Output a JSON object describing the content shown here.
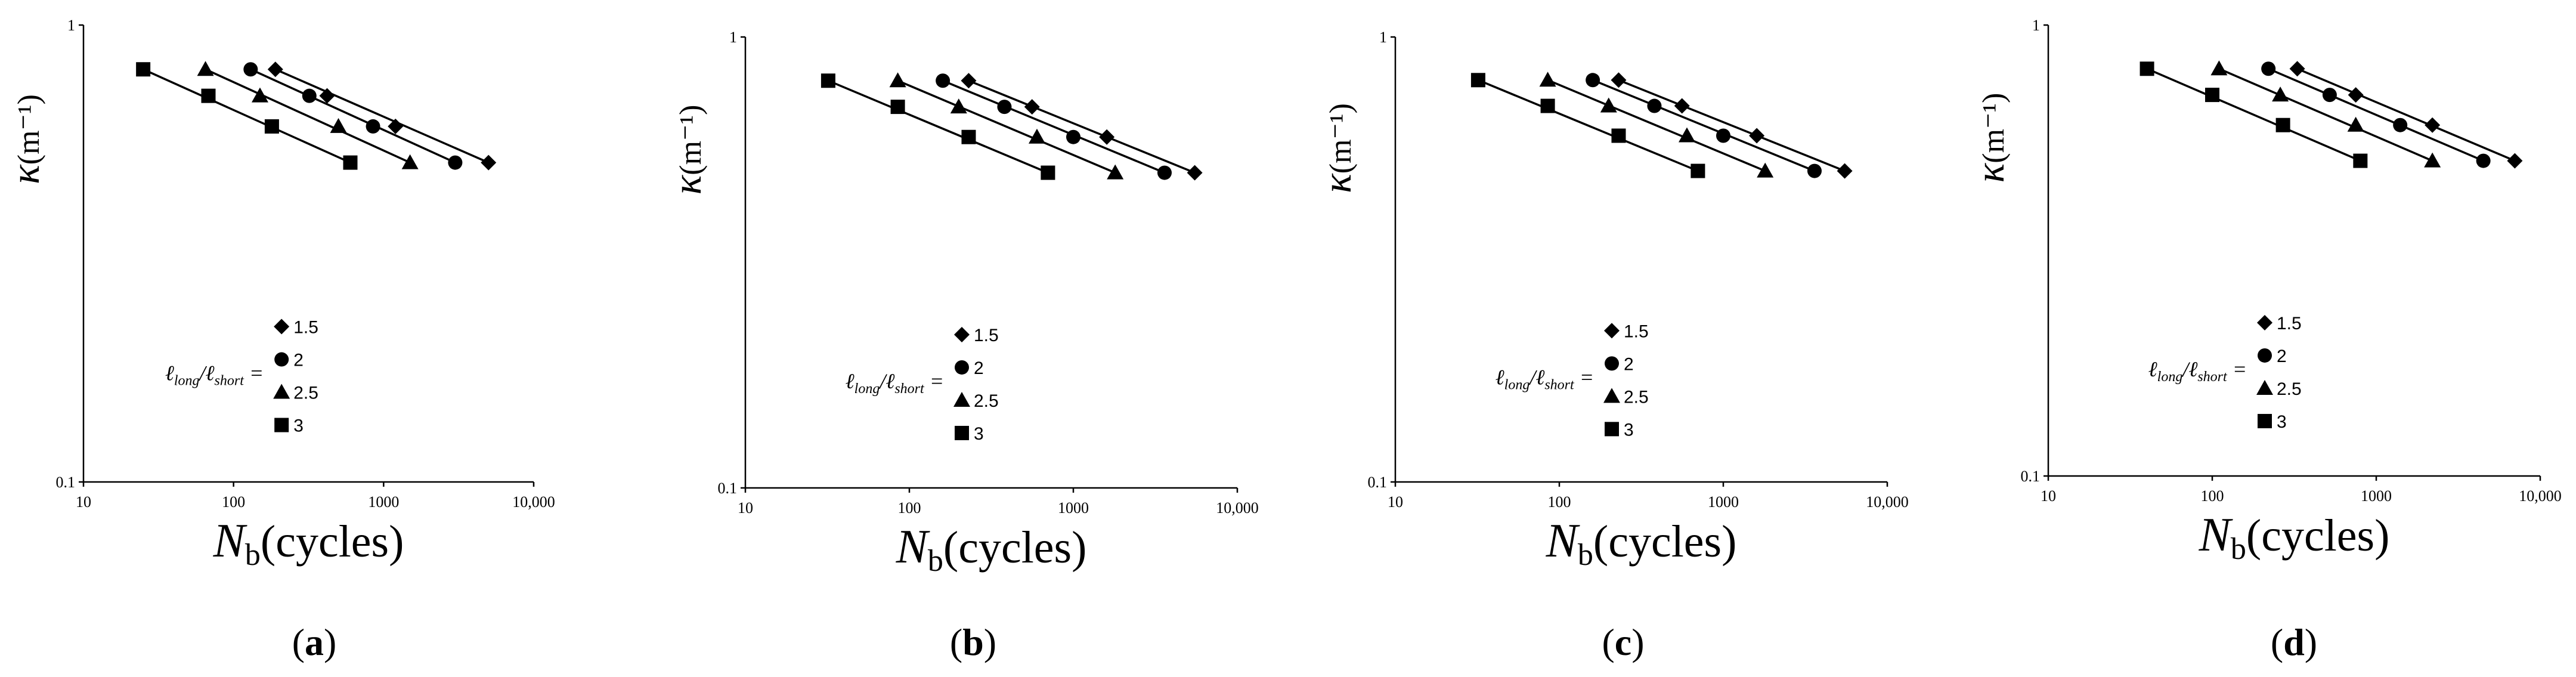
{
  "chart_data": [
    {
      "panel": "a",
      "type": "scatter",
      "xscale": "log",
      "yscale": "log",
      "xlim": [
        10,
        10000
      ],
      "ylim": [
        0.1,
        1
      ],
      "xticks": [
        "10",
        "100",
        "1000",
        "10,000"
      ],
      "yticks": [
        "0.1",
        "1"
      ],
      "xlabel": "N",
      "xlabel_sub": "b",
      "xlabel_rest": "(cycles)",
      "ylabel": "κ",
      "ylabel_rest": "(m⁻¹)",
      "legend_title": {
        "l1": "ℓ",
        "s1": "long",
        "sep": "/",
        "l2": "ℓ",
        "s2": "short",
        "eq": "="
      },
      "series": [
        {
          "name": "1.5",
          "marker": "diamond",
          "x": [
            190,
            420,
            1200,
            5000
          ],
          "y": [
            0.8,
            0.7,
            0.6,
            0.5
          ]
        },
        {
          "name": "2",
          "marker": "circle",
          "x": [
            130,
            320,
            850,
            3000
          ],
          "y": [
            0.8,
            0.7,
            0.6,
            0.5
          ]
        },
        {
          "name": "2.5",
          "marker": "triangle",
          "x": [
            65,
            150,
            500,
            1500
          ],
          "y": [
            0.8,
            0.7,
            0.6,
            0.5
          ]
        },
        {
          "name": "3",
          "marker": "square",
          "x": [
            25,
            68,
            180,
            600
          ],
          "y": [
            0.8,
            0.7,
            0.6,
            0.5
          ]
        }
      ],
      "caption": "a"
    },
    {
      "panel": "b",
      "type": "scatter",
      "xscale": "log",
      "yscale": "log",
      "xlim": [
        10,
        10000
      ],
      "ylim": [
        0.1,
        1
      ],
      "xticks": [
        "10",
        "100",
        "1000",
        "10,000"
      ],
      "yticks": [
        "0.1",
        "1"
      ],
      "xlabel": "N",
      "xlabel_sub": "b",
      "xlabel_rest": "(cycles)",
      "ylabel": "κ",
      "ylabel_rest": "(m⁻¹)",
      "legend_title": {
        "l1": "ℓ",
        "s1": "long",
        "sep": "/",
        "l2": "ℓ",
        "s2": "short",
        "eq": "="
      },
      "series": [
        {
          "name": "1.5",
          "marker": "diamond",
          "x": [
            230,
            560,
            1600,
            5500
          ],
          "y": [
            0.8,
            0.7,
            0.6,
            0.5
          ]
        },
        {
          "name": "2",
          "marker": "circle",
          "x": [
            160,
            380,
            1000,
            3600
          ],
          "y": [
            0.8,
            0.7,
            0.6,
            0.5
          ]
        },
        {
          "name": "2.5",
          "marker": "triangle",
          "x": [
            85,
            200,
            600,
            1800
          ],
          "y": [
            0.8,
            0.7,
            0.6,
            0.5
          ]
        },
        {
          "name": "3",
          "marker": "square",
          "x": [
            32,
            85,
            230,
            700
          ],
          "y": [
            0.8,
            0.7,
            0.6,
            0.5
          ]
        }
      ],
      "caption": "b"
    },
    {
      "panel": "c",
      "type": "scatter",
      "xscale": "log",
      "yscale": "log",
      "xlim": [
        10,
        10000
      ],
      "ylim": [
        0.1,
        1
      ],
      "xticks": [
        "10",
        "100",
        "1000",
        "10,000"
      ],
      "yticks": [
        "0.1",
        "1"
      ],
      "xlabel": "N",
      "xlabel_sub": "b",
      "xlabel_rest": "(cycles)",
      "ylabel": "κ",
      "ylabel_rest": "(m⁻¹)",
      "legend_title": {
        "l1": "ℓ",
        "s1": "long",
        "sep": "/",
        "l2": "ℓ",
        "s2": "short",
        "eq": "="
      },
      "series": [
        {
          "name": "1.5",
          "marker": "diamond",
          "x": [
            230,
            560,
            1600,
            5500
          ],
          "y": [
            0.8,
            0.7,
            0.6,
            0.5
          ]
        },
        {
          "name": "2",
          "marker": "circle",
          "x": [
            160,
            380,
            1000,
            3600
          ],
          "y": [
            0.8,
            0.7,
            0.6,
            0.5
          ]
        },
        {
          "name": "2.5",
          "marker": "triangle",
          "x": [
            85,
            200,
            600,
            1800
          ],
          "y": [
            0.8,
            0.7,
            0.6,
            0.5
          ]
        },
        {
          "name": "3",
          "marker": "square",
          "x": [
            32,
            85,
            230,
            700
          ],
          "y": [
            0.8,
            0.7,
            0.6,
            0.5
          ]
        }
      ],
      "caption": "c"
    },
    {
      "panel": "d",
      "type": "scatter",
      "xscale": "log",
      "yscale": "log",
      "xlim": [
        10,
        10000
      ],
      "ylim": [
        0.1,
        1
      ],
      "xticks": [
        "10",
        "100",
        "1000",
        "10,000"
      ],
      "yticks": [
        "0.1",
        "1"
      ],
      "xlabel": "N",
      "xlabel_sub": "b",
      "xlabel_rest": "(cycles)",
      "ylabel": "κ",
      "ylabel_rest": "(m⁻¹)",
      "legend_title": {
        "l1": "ℓ",
        "s1": "long",
        "sep": "/",
        "l2": "ℓ",
        "s2": "short",
        "eq": "="
      },
      "series": [
        {
          "name": "1.5",
          "marker": "diamond",
          "x": [
            330,
            750,
            2200,
            7000
          ],
          "y": [
            0.8,
            0.7,
            0.6,
            0.5
          ]
        },
        {
          "name": "2",
          "marker": "circle",
          "x": [
            220,
            520,
            1400,
            4500
          ],
          "y": [
            0.8,
            0.7,
            0.6,
            0.5
          ]
        },
        {
          "name": "2.5",
          "marker": "triangle",
          "x": [
            110,
            260,
            750,
            2200
          ],
          "y": [
            0.8,
            0.7,
            0.6,
            0.5
          ]
        },
        {
          "name": "3",
          "marker": "square",
          "x": [
            40,
            100,
            270,
            800
          ],
          "y": [
            0.8,
            0.7,
            0.6,
            0.5
          ]
        }
      ],
      "caption": "d"
    }
  ]
}
